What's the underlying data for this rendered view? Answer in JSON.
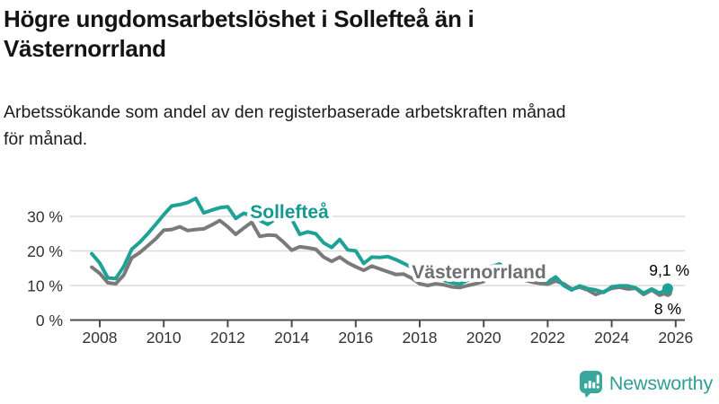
{
  "header": {
    "title": "Högre ungdomsarbetslöshet i Sollefteå än i Västernorrland",
    "subtitle": "Arbetssökande som andel av den registerbaserade arbetskraften månad för månad."
  },
  "branding": {
    "name": "Newsworthy",
    "icon": "bar-chart-speech-bubble-icon",
    "color": "#2f9e95"
  },
  "chart_data": {
    "type": "line",
    "title": "",
    "xlabel": "",
    "ylabel": "",
    "x_unit": "year_decimal_monthly_series",
    "grid": "horizontal-only",
    "legend_position": "inline-series-labels",
    "axis_color": "#4c4c4c",
    "grid_color": "#dcdcdc",
    "tick_label_color": "#333333",
    "end_label_color": "#000000",
    "xlim": [
      2007.6,
      2026.35
    ],
    "ylim": [
      0,
      39
    ],
    "x_ticks": [
      2008,
      2010,
      2012,
      2014,
      2016,
      2018,
      2020,
      2022,
      2024,
      2026
    ],
    "y_ticks": [
      {
        "value": 30,
        "label": "30 %"
      },
      {
        "value": 20,
        "label": "20 %"
      },
      {
        "value": 10,
        "label": "10 %"
      },
      {
        "value": 0,
        "label": "0 %"
      }
    ],
    "x": [
      2007.75,
      2008,
      2008.25,
      2008.5,
      2008.75,
      2009,
      2009.25,
      2009.5,
      2009.75,
      2010,
      2010.25,
      2010.5,
      2010.75,
      2011,
      2011.25,
      2011.5,
      2011.75,
      2012,
      2012.25,
      2012.5,
      2012.75,
      2013,
      2013.25,
      2013.5,
      2013.75,
      2014,
      2014.25,
      2014.5,
      2014.75,
      2015,
      2015.25,
      2015.5,
      2015.75,
      2016,
      2016.25,
      2016.5,
      2016.75,
      2017,
      2017.25,
      2017.5,
      2017.75,
      2018,
      2018.25,
      2018.5,
      2018.75,
      2019,
      2019.25,
      2019.5,
      2019.75,
      2020,
      2020.25,
      2020.5,
      2020.75,
      2021,
      2021.25,
      2021.5,
      2021.75,
      2022,
      2022.25,
      2022.5,
      2022.75,
      2023,
      2023.25,
      2023.5,
      2023.75,
      2024,
      2024.25,
      2024.5,
      2024.75,
      2025,
      2025.25,
      2025.5,
      2025.75
    ],
    "series": [
      {
        "name": "Sollefteå",
        "color": "#1fa296",
        "label_color": "#149a90",
        "end_label": "9,1 %",
        "end_value": 9.1,
        "values": [
          19.2,
          16.5,
          12.2,
          12.0,
          15.5,
          20.5,
          22.5,
          25.0,
          27.7,
          30.5,
          33.0,
          33.4,
          34.0,
          35.2,
          31.0,
          31.8,
          32.5,
          32.8,
          29.4,
          30.9,
          30.2,
          28.8,
          27.7,
          29.3,
          29.8,
          29.2,
          24.8,
          25.5,
          25.0,
          22.3,
          21.0,
          23.3,
          20.3,
          20.0,
          16.4,
          18.2,
          18.1,
          18.4,
          17.5,
          16.4,
          15.2,
          13.8,
          12.5,
          12.8,
          11.5,
          10.8,
          10.4,
          11.5,
          12.3,
          13.2,
          15.5,
          16.2,
          14.5,
          13.8,
          13.0,
          12.5,
          12.0,
          11.0,
          12.5,
          10.0,
          8.7,
          9.9,
          9.1,
          8.7,
          8.0,
          9.6,
          9.9,
          9.9,
          9.3,
          7.8,
          9.0,
          7.8,
          9.1
        ]
      },
      {
        "name": "Västernorrland",
        "color": "#7a7a7a",
        "label_color": "#6d7175",
        "end_label": "8 %",
        "end_value": 8.0,
        "values": [
          15.3,
          13.5,
          10.8,
          10.5,
          13.0,
          18.0,
          19.5,
          21.5,
          23.5,
          26.0,
          26.2,
          27.0,
          25.9,
          26.2,
          26.4,
          27.5,
          28.8,
          27.0,
          24.8,
          26.6,
          28.3,
          24.2,
          24.6,
          24.5,
          22.5,
          20.2,
          21.2,
          20.9,
          20.5,
          18.2,
          17.0,
          18.2,
          16.6,
          15.4,
          14.4,
          15.6,
          14.8,
          14.0,
          13.2,
          13.3,
          12.1,
          10.5,
          10.0,
          10.5,
          10.2,
          9.6,
          9.4,
          10.0,
          10.5,
          11.2,
          13.0,
          13.6,
          12.8,
          12.2,
          11.6,
          11.0,
          10.6,
          10.4,
          11.3,
          10.5,
          9.0,
          9.5,
          8.7,
          7.4,
          8.2,
          9.2,
          9.5,
          9.0,
          9.2,
          7.4,
          8.7,
          7.2,
          8.0
        ]
      }
    ]
  }
}
